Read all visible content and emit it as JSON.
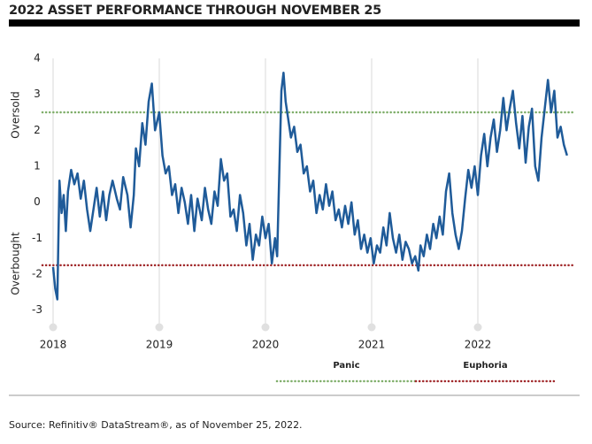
{
  "chart_data": {
    "type": "line",
    "title": "2022 ASSET PERFORMANCE THROUGH NOVEMBER 25",
    "ylabel_top": "Oversold",
    "ylabel_bottom": "Overbought",
    "source": "Source: Refinitiv® DataStream®, as of November 25, 2022.",
    "x": [
      2018.0,
      2018.02,
      2018.04,
      2018.05,
      2018.06,
      2018.08,
      2018.1,
      2018.12,
      2018.14,
      2018.17,
      2018.2,
      2018.23,
      2018.26,
      2018.29,
      2018.32,
      2018.35,
      2018.38,
      2018.41,
      2018.44,
      2018.47,
      2018.5,
      2018.53,
      2018.56,
      2018.6,
      2018.63,
      2018.66,
      2018.7,
      2018.73,
      2018.76,
      2018.78,
      2018.81,
      2018.84,
      2018.87,
      2018.9,
      2018.93,
      2018.96,
      2019.0,
      2019.03,
      2019.06,
      2019.09,
      2019.12,
      2019.15,
      2019.18,
      2019.21,
      2019.24,
      2019.27,
      2019.3,
      2019.33,
      2019.36,
      2019.4,
      2019.43,
      2019.46,
      2019.49,
      2019.52,
      2019.55,
      2019.58,
      2019.61,
      2019.64,
      2019.67,
      2019.7,
      2019.73,
      2019.76,
      2019.79,
      2019.82,
      2019.85,
      2019.88,
      2019.91,
      2019.94,
      2019.97,
      2020.0,
      2020.03,
      2020.06,
      2020.09,
      2020.11,
      2020.13,
      2020.15,
      2020.17,
      2020.19,
      2020.21,
      2020.24,
      2020.27,
      2020.3,
      2020.33,
      2020.36,
      2020.39,
      2020.42,
      2020.45,
      2020.48,
      2020.51,
      2020.54,
      2020.57,
      2020.6,
      2020.63,
      2020.66,
      2020.69,
      2020.72,
      2020.75,
      2020.78,
      2020.81,
      2020.84,
      2020.87,
      2020.9,
      2020.93,
      2020.96,
      2020.99,
      2021.02,
      2021.05,
      2021.08,
      2021.11,
      2021.14,
      2021.17,
      2021.2,
      2021.23,
      2021.26,
      2021.29,
      2021.32,
      2021.35,
      2021.38,
      2021.41,
      2021.44,
      2021.46,
      2021.49,
      2021.52,
      2021.55,
      2021.58,
      2021.61,
      2021.64,
      2021.67,
      2021.7,
      2021.73,
      2021.76,
      2021.79,
      2021.82,
      2021.85,
      2021.88,
      2021.91,
      2021.94,
      2021.97,
      2022.0,
      2022.03,
      2022.06,
      2022.09,
      2022.12,
      2022.15,
      2022.18,
      2022.21,
      2022.24,
      2022.27,
      2022.3,
      2022.33,
      2022.36,
      2022.39,
      2022.42,
      2022.45,
      2022.48,
      2022.51,
      2022.54,
      2022.57,
      2022.6,
      2022.63,
      2022.66,
      2022.69,
      2022.72,
      2022.75,
      2022.78,
      2022.81,
      2022.84
    ],
    "series": [
      {
        "color": "#1f5b99",
        "values": [
          -1.8,
          -2.4,
          -2.7,
          -1.0,
          0.6,
          -0.3,
          0.2,
          -0.8,
          0.3,
          0.9,
          0.5,
          0.8,
          0.1,
          0.6,
          -0.2,
          -0.8,
          -0.2,
          0.4,
          -0.4,
          0.3,
          -0.5,
          0.2,
          0.6,
          0.1,
          -0.2,
          0.7,
          0.2,
          -0.7,
          0.2,
          1.5,
          1.0,
          2.2,
          1.6,
          2.8,
          3.3,
          2.0,
          2.5,
          1.3,
          0.8,
          1.0,
          0.2,
          0.5,
          -0.3,
          0.4,
          0.0,
          -0.6,
          0.2,
          -0.8,
          0.1,
          -0.5,
          0.4,
          -0.2,
          -0.6,
          0.3,
          -0.1,
          1.2,
          0.6,
          0.8,
          -0.4,
          -0.2,
          -0.8,
          0.2,
          -0.3,
          -1.2,
          -0.6,
          -1.6,
          -0.9,
          -1.2,
          -0.4,
          -1.0,
          -0.6,
          -1.7,
          -1.0,
          -1.5,
          0.8,
          3.1,
          3.6,
          2.8,
          2.4,
          1.8,
          2.1,
          1.4,
          1.6,
          0.8,
          1.0,
          0.3,
          0.6,
          -0.3,
          0.2,
          -0.2,
          0.5,
          -0.1,
          0.3,
          -0.5,
          -0.2,
          -0.7,
          -0.1,
          -0.6,
          0.0,
          -0.9,
          -0.5,
          -1.3,
          -0.9,
          -1.4,
          -1.0,
          -1.7,
          -1.2,
          -1.4,
          -0.7,
          -1.2,
          -0.3,
          -1.0,
          -1.4,
          -0.9,
          -1.6,
          -1.1,
          -1.3,
          -1.7,
          -1.5,
          -1.9,
          -1.2,
          -1.5,
          -0.9,
          -1.3,
          -0.6,
          -1.0,
          -0.4,
          -0.9,
          0.3,
          0.8,
          -0.3,
          -0.9,
          -1.3,
          -0.8,
          0.1,
          0.9,
          0.4,
          1.0,
          0.2,
          1.3,
          1.9,
          1.0,
          1.8,
          2.3,
          1.4,
          2.0,
          2.9,
          2.0,
          2.6,
          3.1,
          2.2,
          1.5,
          2.4,
          1.1,
          2.1,
          2.6,
          1.0,
          0.6,
          1.8,
          2.6,
          3.4,
          2.5,
          3.1,
          1.8,
          2.1,
          1.6,
          1.3
        ]
      }
    ],
    "reference_lines": [
      {
        "name": "Panic",
        "value": 2.5,
        "color": "#7fae6a"
      },
      {
        "name": "Euphoria",
        "value": -1.75,
        "color": "#a0282a"
      }
    ],
    "xlim": [
      2017.9,
      2022.9
    ],
    "xticks": [
      2018,
      2019,
      2020,
      2021,
      2022
    ],
    "ylim": [
      -3.5,
      4
    ],
    "yticks": [
      -3,
      -2,
      -1,
      0,
      1,
      2,
      3,
      4
    ],
    "grid": true
  }
}
